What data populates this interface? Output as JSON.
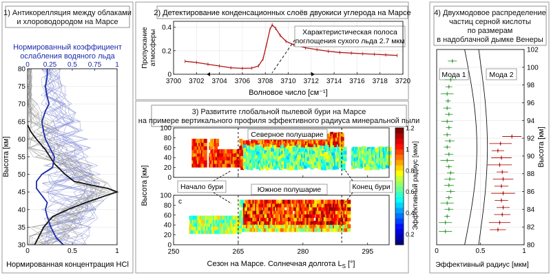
{
  "colors": {
    "black": "#111111",
    "blue": "#1a2aa8",
    "thin_blue": "#8e96d8",
    "thin_gray": "#9a9a9a",
    "red": "#b01010",
    "green": "#2e9a2e",
    "panel_border": "#9a9a9a",
    "title_border": "#777777"
  },
  "chart_data": [
    {
      "id": "p1",
      "type": "line",
      "title": "1) Антикорелляция между облаками и хлороводородом на Марсе",
      "title_lines": [
        "1) Антикорелляция между облаками",
        "и хлороводородом на Марсе"
      ],
      "top_axis_label_lines": [
        "Нормированный коэффициент",
        "ослабления водяного льда"
      ],
      "xlabel": "Нормированная концентрация HCl",
      "ylabel": "Высота [км]",
      "xlim": [
        0,
        1
      ],
      "ylim": [
        30,
        80
      ],
      "xticks": [
        "0",
        "0.5",
        "1"
      ],
      "xtick_values": [
        0,
        0.5,
        1
      ],
      "top_ticks": [
        "0",
        "0.25",
        "0.5",
        "0.75",
        "1"
      ],
      "top_tick_values": [
        0,
        0.25,
        0.5,
        0.75,
        1
      ],
      "yticks": [
        "30",
        "35",
        "40",
        "45",
        "50",
        "55",
        "60",
        "65",
        "70",
        "75",
        "80"
      ],
      "series": [
        {
          "role": "hcl",
          "color": "#111111",
          "points": [
            [
              0.08,
              30
            ],
            [
              0.12,
              32
            ],
            [
              0.18,
              35
            ],
            [
              0.28,
              38
            ],
            [
              0.45,
              40
            ],
            [
              0.65,
              42
            ],
            [
              0.88,
              44
            ],
            [
              1.0,
              45
            ],
            [
              0.9,
              46
            ],
            [
              0.7,
              47
            ],
            [
              0.52,
              48
            ],
            [
              0.42,
              50
            ],
            [
              0.3,
              53
            ],
            [
              0.2,
              57
            ],
            [
              0.1,
              60
            ],
            [
              0.04,
              62
            ],
            [
              0.0,
              64
            ]
          ]
        },
        {
          "role": "ice",
          "color": "#1a2aa8",
          "points": [
            [
              0.4,
              30
            ],
            [
              0.32,
              32
            ],
            [
              0.26,
              35
            ],
            [
              0.22,
              38
            ],
            [
              0.2,
              40
            ],
            [
              0.22,
              42
            ],
            [
              0.16,
              44
            ],
            [
              0.1,
              46
            ],
            [
              0.1,
              48
            ],
            [
              0.16,
              50
            ],
            [
              0.28,
              52
            ],
            [
              0.3,
              55
            ],
            [
              0.24,
              58
            ],
            [
              0.2,
              60
            ],
            [
              0.18,
              62
            ],
            [
              0.16,
              65
            ],
            [
              0.2,
              68
            ],
            [
              0.24,
              70
            ],
            [
              0.22,
              72
            ],
            [
              0.2,
              75
            ],
            [
              0.22,
              78
            ],
            [
              0.22,
              80
            ]
          ]
        }
      ]
    },
    {
      "id": "p2",
      "type": "line",
      "title": "2) Детектирование конденсационных слоёв двуокиси углерода на Марсе",
      "xlabel": "Волновое число [см⁻¹]",
      "ylabel_lines": [
        "Пропускание",
        "атмосферы"
      ],
      "xlim": [
        3700,
        3720
      ],
      "ylim": [
        0,
        0.45
      ],
      "xticks": [
        "3700",
        "3702",
        "3704",
        "3706",
        "3708",
        "3710",
        "3712",
        "3714",
        "3716",
        "3718",
        "3720"
      ],
      "yticks": [
        "0",
        "0.2",
        "0.4"
      ],
      "ytick_values": [
        0,
        0.2,
        0.4
      ],
      "annotation_lines": [
        "Характеристическая полоса",
        "поглощения сухого льда 2.7 мкм"
      ],
      "series": [
        {
          "role": "transmission",
          "color": "#b01010",
          "points": [
            [
              3701,
              0.11
            ],
            [
              3702,
              0.1
            ],
            [
              3703,
              0.085
            ],
            [
              3704,
              0.07
            ],
            [
              3705,
              0.055
            ],
            [
              3706,
              0.05
            ],
            [
              3706.8,
              0.052
            ],
            [
              3707.4,
              0.07
            ],
            [
              3707.8,
              0.13
            ],
            [
              3708.1,
              0.25
            ],
            [
              3708.4,
              0.38
            ],
            [
              3708.6,
              0.42
            ],
            [
              3708.9,
              0.39
            ],
            [
              3709.3,
              0.33
            ],
            [
              3709.8,
              0.28
            ],
            [
              3710.5,
              0.25
            ],
            [
              3711.5,
              0.225
            ],
            [
              3712.5,
              0.21
            ],
            [
              3713.5,
              0.195
            ],
            [
              3714.5,
              0.185
            ],
            [
              3715.5,
              0.18
            ],
            [
              3716.5,
              0.175
            ],
            [
              3717.5,
              0.17
            ],
            [
              3718.5,
              0.165
            ],
            [
              3719.5,
              0.16
            ]
          ]
        }
      ]
    },
    {
      "id": "p3",
      "type": "heatmap",
      "title_lines": [
        "3) Развитите глобальной пылевой бури на Марсе",
        "на примере вертикального профиля эффективного радиуса минеральной пыли"
      ],
      "xlabel": "Сезон на Марсе. Солнечная долгота L",
      "xlabel_sub": "S",
      "xlabel_unit": "[°]",
      "ylabel": "Высота [км]",
      "colorbar_label": "Эффективный радиус [мкм]",
      "xlim": [
        250,
        300
      ],
      "xticks": [
        "250",
        "265",
        "280",
        "295"
      ],
      "xtick_values": [
        250,
        265,
        280,
        295
      ],
      "ylim": [
        0,
        100
      ],
      "yticks": [
        "0",
        "20",
        "40",
        "60",
        "80",
        "100"
      ],
      "clim": [
        0.1,
        1.2
      ],
      "cticks": [
        "0.2",
        "0.4",
        "0.6",
        "0.8",
        "1",
        "1.2"
      ],
      "ctick_values": [
        0.2,
        0.4,
        0.6,
        0.8,
        1.0,
        1.2
      ],
      "markers": [
        265,
        289
      ],
      "labels": {
        "north": "Северное полушарие",
        "south": "Южное полушарие",
        "storm_start": "Начало бури",
        "storm_end": "Конец бури",
        "south_corner": "с"
      }
    },
    {
      "id": "p4",
      "type": "scatter",
      "title_lines": [
        "4) Двухмодовое распределение",
        "частиц серной кислоты",
        "по размерам",
        "в надоблачной дымке Венеры"
      ],
      "xlabel": "Эффективный радиус [мкм]",
      "ylabel": "Высота [км]",
      "xlim": [
        0,
        1
      ],
      "xticks": [
        "0",
        "0.5",
        "1"
      ],
      "xtick_values": [
        0,
        0.5,
        1
      ],
      "ylim": [
        80,
        102
      ],
      "yticks": [
        "80",
        "82",
        "84",
        "86",
        "88",
        "90",
        "92",
        "94",
        "96",
        "98",
        "100",
        "102"
      ],
      "mode1_label": "Мода 1",
      "mode2_label": "Мода 2",
      "series": [
        {
          "name": "Мода 1",
          "color": "#2e9a2e",
          "points": [
            [
              0.1,
              81.5
            ],
            [
              0.1,
              82.5
            ],
            [
              0.12,
              83.2
            ],
            [
              0.14,
              84
            ],
            [
              0.12,
              84.7
            ],
            [
              0.14,
              85.3
            ],
            [
              0.16,
              86
            ],
            [
              0.14,
              86.7
            ],
            [
              0.15,
              87.4
            ],
            [
              0.16,
              88.1
            ],
            [
              0.14,
              88.8
            ],
            [
              0.12,
              89.5
            ],
            [
              0.14,
              90.2
            ],
            [
              0.12,
              91
            ],
            [
              0.15,
              91.7
            ],
            [
              0.12,
              92.4
            ],
            [
              0.14,
              93.2
            ],
            [
              0.12,
              93.9
            ],
            [
              0.14,
              94.7
            ],
            [
              0.12,
              95.4
            ],
            [
              0.13,
              96.2
            ],
            [
              0.12,
              97
            ],
            [
              0.14,
              97.8
            ],
            [
              0.16,
              98.6
            ],
            [
              0.18,
              100.7
            ]
          ]
        },
        {
          "name": "Мода 2",
          "color": "#b01010",
          "points": [
            [
              0.7,
              81.7
            ],
            [
              0.72,
              82.5
            ],
            [
              0.75,
              83.4
            ],
            [
              0.76,
              84.2
            ],
            [
              0.74,
              85
            ],
            [
              0.76,
              85.8
            ],
            [
              0.74,
              86.6
            ],
            [
              0.76,
              87.4
            ],
            [
              0.75,
              88.2
            ],
            [
              0.72,
              89
            ],
            [
              0.74,
              89.8
            ],
            [
              0.7,
              90.6
            ],
            [
              0.73,
              91.4
            ],
            [
              0.86,
              92.2
            ]
          ]
        }
      ]
    }
  ]
}
